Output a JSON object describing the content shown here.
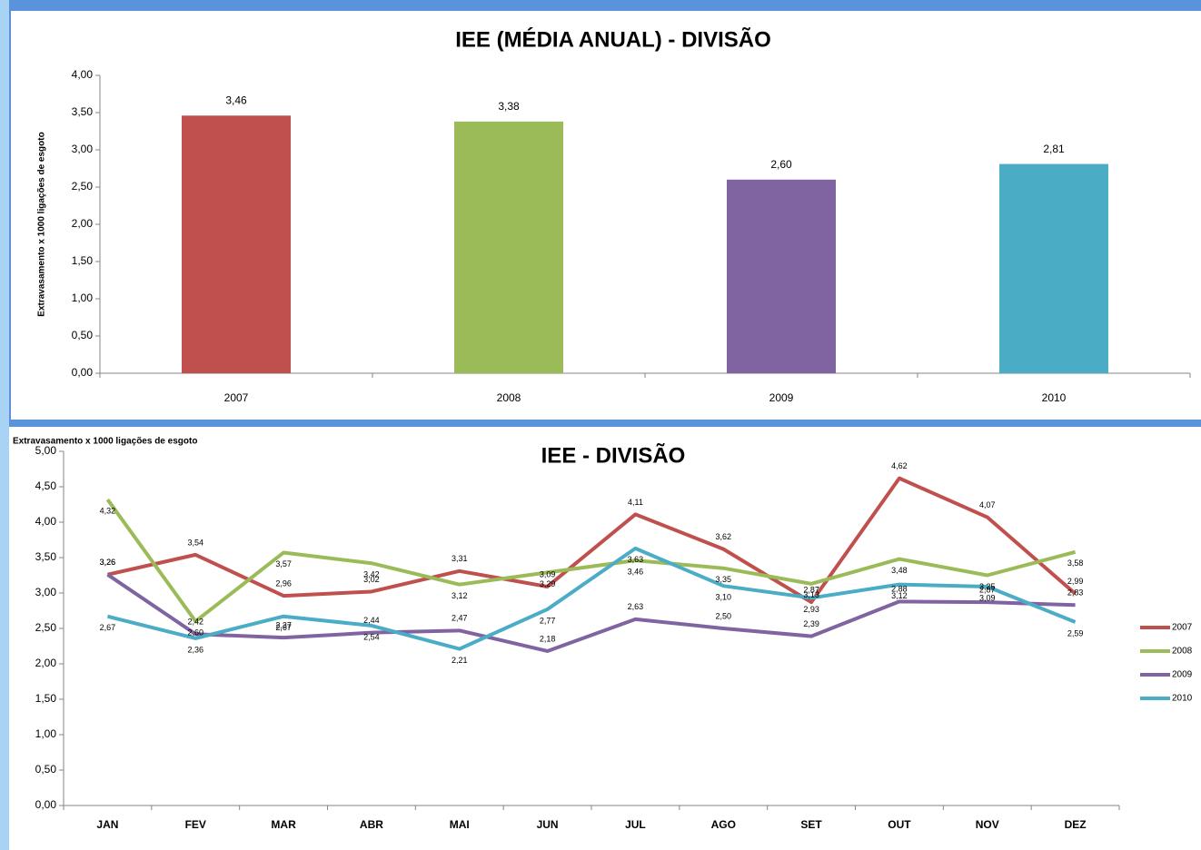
{
  "chart_data": [
    {
      "type": "bar",
      "title": "IEE (MÉDIA ANUAL) - DIVISÃO",
      "y_label": "Extravasamento x 1000 ligações de esgoto",
      "categories": [
        "2007",
        "2008",
        "2009",
        "2010"
      ],
      "values": [
        3.46,
        3.38,
        2.6,
        2.81
      ],
      "value_labels": [
        "3,46",
        "3,38",
        "2,60",
        "2,81"
      ],
      "colors": [
        "#c0504d",
        "#9bbb59",
        "#8064a2",
        "#4bacc6"
      ],
      "ylim": [
        0,
        4
      ],
      "yticks": [
        {
          "value": 0,
          "label": "0,00"
        },
        {
          "value": 0.5,
          "label": "0,50"
        },
        {
          "value": 1,
          "label": "1,00"
        },
        {
          "value": 1.5,
          "label": "1,50"
        },
        {
          "value": 2,
          "label": "2,00"
        },
        {
          "value": 2.5,
          "label": "2,50"
        },
        {
          "value": 3,
          "label": "3,00"
        },
        {
          "value": 3.5,
          "label": "3,50"
        },
        {
          "value": 4,
          "label": "4,00"
        }
      ],
      "grid": false
    },
    {
      "type": "line",
      "title": "IEE - DIVISÃO",
      "y_label": "Extravasamento x 1000 ligações de esgoto",
      "categories": [
        "JAN",
        "FEV",
        "MAR",
        "ABR",
        "MAI",
        "JUN",
        "JUL",
        "AGO",
        "SET",
        "OUT",
        "NOV",
        "DEZ"
      ],
      "series": [
        {
          "name": "2007",
          "color": "#c0504d",
          "values": [
            3.26,
            3.54,
            2.96,
            3.02,
            3.31,
            3.09,
            4.11,
            3.62,
            2.87,
            4.62,
            4.07,
            2.99
          ],
          "value_labels": [
            "3,26",
            "3,54",
            "2,96",
            "3,02",
            "3,31",
            "3,09",
            "4,11",
            "3,62",
            "2,87",
            "4,62",
            "4,07",
            "2,99"
          ]
        },
        {
          "name": "2008",
          "color": "#9bbb59",
          "values": [
            4.32,
            2.6,
            3.57,
            3.42,
            3.12,
            3.29,
            3.46,
            3.35,
            3.13,
            3.48,
            3.25,
            3.58
          ],
          "value_labels": [
            "4,32",
            "2,60",
            "3,57",
            "3,42",
            "3,12",
            "3,29",
            "3,46",
            "3,35",
            "3,13",
            "3,48",
            "3,25",
            "3,58"
          ]
        },
        {
          "name": "2009",
          "color": "#8064a2",
          "values": [
            3.26,
            2.42,
            2.37,
            2.44,
            2.47,
            2.18,
            2.63,
            2.5,
            2.39,
            2.88,
            2.87,
            2.83
          ],
          "value_labels": [
            "3,26",
            "2,42",
            "2,37",
            "2,44",
            "2,47",
            "2,18",
            "2,63",
            "2,50",
            "2,39",
            "2,88",
            "2,87",
            "2,83"
          ]
        },
        {
          "name": "2010",
          "color": "#4bacc6",
          "values": [
            2.67,
            2.36,
            2.67,
            2.54,
            2.21,
            2.77,
            3.63,
            3.1,
            2.93,
            3.12,
            3.09,
            2.59
          ],
          "value_labels": [
            "2,67",
            "2,36",
            "2,67",
            "2,54",
            "2,21",
            "2,77",
            "3,63",
            "3,10",
            "2,93",
            "3,12",
            "3,09",
            "2,59"
          ]
        }
      ],
      "ylim": [
        0,
        5
      ],
      "yticks": [
        {
          "value": 0,
          "label": "0,00"
        },
        {
          "value": 0.5,
          "label": "0,50"
        },
        {
          "value": 1,
          "label": "1,00"
        },
        {
          "value": 1.5,
          "label": "1,50"
        },
        {
          "value": 2,
          "label": "2,00"
        },
        {
          "value": 2.5,
          "label": "2,50"
        },
        {
          "value": 3,
          "label": "3,00"
        },
        {
          "value": 3.5,
          "label": "3,50"
        },
        {
          "value": 4,
          "label": "4,00"
        },
        {
          "value": 4.5,
          "label": "4,50"
        },
        {
          "value": 5,
          "label": "5,00"
        }
      ],
      "legend": "right",
      "grid": false
    }
  ]
}
